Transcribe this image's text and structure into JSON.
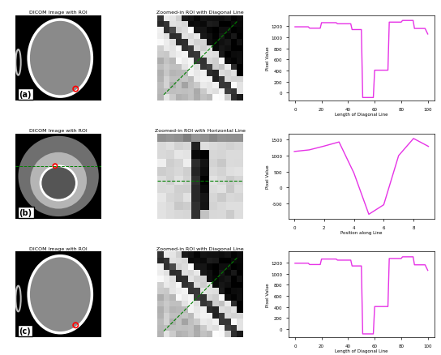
{
  "chart_data": [
    {
      "type": "line",
      "xlabel": "Length of Diagonal Line",
      "ylabel": "Pixel Value",
      "x": [
        0,
        10,
        11,
        19,
        20,
        31,
        32,
        42,
        43,
        50,
        51,
        59,
        60,
        70,
        71,
        80,
        81,
        89,
        90,
        98,
        100
      ],
      "values": [
        1190,
        1190,
        1165,
        1165,
        1265,
        1265,
        1245,
        1245,
        1140,
        1140,
        -90,
        -90,
        405,
        405,
        1275,
        1275,
        1305,
        1305,
        1160,
        1160,
        1060
      ],
      "color": "#e633e6",
      "xlim": [
        -5,
        105
      ],
      "xticks": [
        0,
        20,
        40,
        60,
        80,
        100
      ],
      "ylim": [
        -150,
        1400
      ],
      "yticks": [
        0,
        200,
        400,
        600,
        800,
        1000,
        1200
      ]
    },
    {
      "type": "line",
      "xlabel": "Position along Line",
      "ylabel": "Pixel Value",
      "x": [
        0,
        1,
        2,
        3,
        4,
        5,
        6,
        7,
        8,
        9
      ],
      "values": [
        1130,
        1180,
        1300,
        1430,
        450,
        -850,
        -550,
        1000,
        1540,
        1290
      ],
      "color": "#e633e6",
      "xlim": [
        -0.4,
        9.4
      ],
      "xticks": [
        0,
        2,
        4,
        6,
        8
      ],
      "ylim": [
        -1000,
        1700
      ],
      "yticks": [
        -500,
        0,
        500,
        1000,
        1500
      ]
    },
    {
      "type": "line",
      "xlabel": "Length of Diagonal Line",
      "ylabel": "Pixel Value",
      "x": [
        0,
        10,
        11,
        19,
        20,
        31,
        32,
        42,
        43,
        50,
        51,
        59,
        60,
        70,
        71,
        80,
        81,
        89,
        90,
        98,
        100
      ],
      "values": [
        1190,
        1190,
        1165,
        1165,
        1265,
        1265,
        1245,
        1245,
        1140,
        1140,
        -90,
        -90,
        405,
        405,
        1275,
        1275,
        1305,
        1305,
        1160,
        1160,
        1060
      ],
      "color": "#e633e6",
      "xlim": [
        -5,
        105
      ],
      "xticks": [
        0,
        20,
        40,
        60,
        80,
        100
      ],
      "ylim": [
        -150,
        1400
      ],
      "yticks": [
        0,
        200,
        400,
        600,
        800,
        1000,
        1200
      ]
    }
  ],
  "images": [
    {
      "label": "(a)",
      "title": "DICOM Image with ROI",
      "zoom_title": "Zoomed-in ROI with Diagonal Line"
    },
    {
      "label": "(b)",
      "title": "DICOM Image with ROI",
      "zoom_title": "Zoomed-in ROI with Horizontal Line"
    },
    {
      "label": "(c)",
      "title": "DICOM Image with ROI",
      "zoom_title": "Zoomed-in ROI with Diagonal Line"
    }
  ]
}
